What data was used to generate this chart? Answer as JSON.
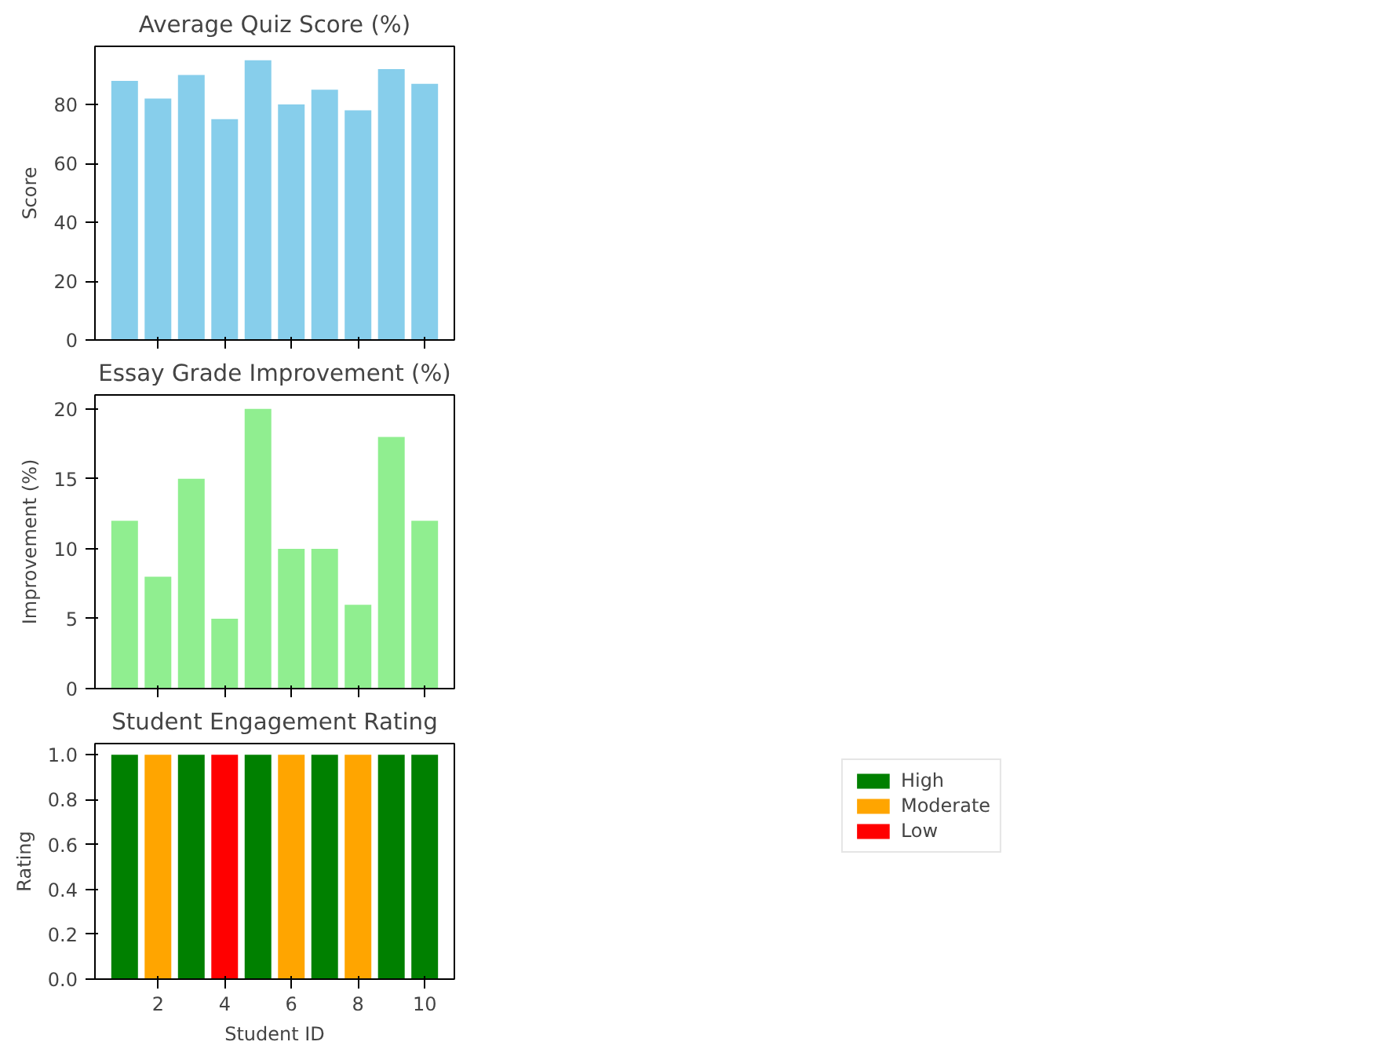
{
  "chart_data": [
    {
      "type": "bar",
      "title": "Average Quiz Score (%)",
      "ylabel": "Score",
      "x": [
        1,
        2,
        3,
        4,
        5,
        6,
        7,
        8,
        9,
        10
      ],
      "xlim": [
        0.11,
        10.89
      ],
      "xticks": [
        {
          "value": 2,
          "label": null
        },
        {
          "value": 4,
          "label": null
        },
        {
          "value": 6,
          "label": null
        },
        {
          "value": 8,
          "label": null
        },
        {
          "value": 10,
          "label": null
        }
      ],
      "ylim": [
        0,
        99.75
      ],
      "yticks": [
        0,
        20,
        40,
        60,
        80
      ],
      "tick_labels": "y",
      "grid": false,
      "series": [
        {
          "color": "#87ceeb",
          "values": [
            88,
            82,
            90,
            75,
            95,
            80,
            85,
            78,
            92,
            87
          ]
        }
      ]
    },
    {
      "type": "bar",
      "title": "Essay Grade Improvement (%)",
      "ylabel": "Improvement (%)",
      "x": [
        1,
        2,
        3,
        4,
        5,
        6,
        7,
        8,
        9,
        10
      ],
      "xlim": [
        0.11,
        10.89
      ],
      "xticks": [
        {
          "value": 2,
          "label": null
        },
        {
          "value": 4,
          "label": null
        },
        {
          "value": 6,
          "label": null
        },
        {
          "value": 8,
          "label": null
        },
        {
          "value": 10,
          "label": null
        }
      ],
      "ylim": [
        0,
        21
      ],
      "yticks": [
        0,
        5,
        10,
        15,
        20
      ],
      "tick_labels": "y",
      "grid": false,
      "series": [
        {
          "color": "#90ee90",
          "values": [
            12,
            8,
            15,
            5,
            20,
            10,
            10,
            6,
            18,
            12
          ]
        }
      ]
    },
    {
      "type": "bar",
      "title": "Student Engagement Rating",
      "xlabel": "Student ID",
      "ylabel": "Rating",
      "x": [
        1,
        2,
        3,
        4,
        5,
        6,
        7,
        8,
        9,
        10
      ],
      "xlim": [
        0.11,
        10.89
      ],
      "xticks": [
        2,
        4,
        6,
        8,
        10
      ],
      "ylim": [
        0,
        1.05
      ],
      "yticks": [
        {
          "value": 0,
          "label": "0.0"
        },
        {
          "value": 0.2,
          "label": "0.2"
        },
        {
          "value": 0.4,
          "label": "0.4"
        },
        {
          "value": 0.6,
          "label": "0.6"
        },
        {
          "value": 0.8,
          "label": "0.8"
        },
        {
          "value": 1,
          "label": "1.0"
        }
      ],
      "grid": false,
      "legend": "top right",
      "series": [
        {
          "name": "High",
          "color": "#008000",
          "values": [
            1,
            null,
            1,
            null,
            1,
            null,
            1,
            null,
            1,
            1
          ]
        },
        {
          "name": "Moderate",
          "color": "#ffa500",
          "values": [
            null,
            1,
            null,
            null,
            null,
            1,
            null,
            1,
            null,
            null
          ]
        },
        {
          "name": "Low",
          "color": "#ff0000",
          "values": [
            null,
            null,
            null,
            1,
            null,
            null,
            null,
            null,
            null,
            null
          ]
        }
      ]
    }
  ]
}
